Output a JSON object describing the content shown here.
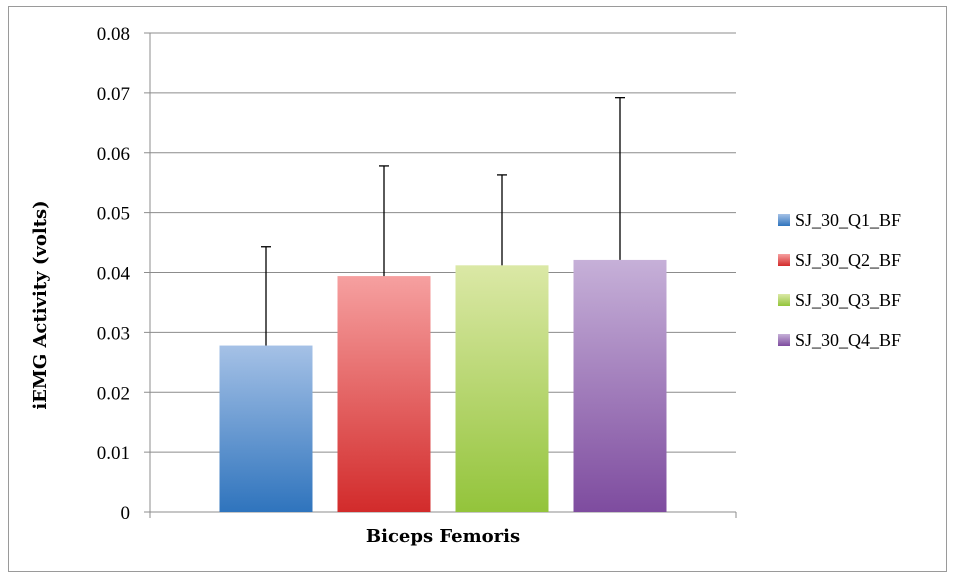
{
  "chart_data": {
    "type": "bar",
    "title": "",
    "xlabel": "Biceps Femoris",
    "ylabel": "iEMG Activity (volts)",
    "ylim": [
      0,
      0.08
    ],
    "yticks": [
      "0",
      "0.01",
      "0.02",
      "0.03",
      "0.04",
      "0.05",
      "0.06",
      "0.07",
      "0.08"
    ],
    "grid": true,
    "legend_position": "right",
    "categories": [
      "Biceps Femoris"
    ],
    "series": [
      {
        "name": "SJ_30_Q1_BF",
        "value": 0.0278,
        "error": 0.0165,
        "color_top": "#a5c1e6",
        "color_bottom": "#2f74bd"
      },
      {
        "name": "SJ_30_Q2_BF",
        "value": 0.0394,
        "error": 0.0184,
        "color_top": "#f6a0a0",
        "color_bottom": "#d22b2b"
      },
      {
        "name": "SJ_30_Q3_BF",
        "value": 0.0412,
        "error": 0.0151,
        "color_top": "#dbe8a6",
        "color_bottom": "#93c43b"
      },
      {
        "name": "SJ_30_Q4_BF",
        "value": 0.0421,
        "error": 0.0271,
        "color_top": "#c6b0d8",
        "color_bottom": "#7e4c9f"
      }
    ]
  }
}
